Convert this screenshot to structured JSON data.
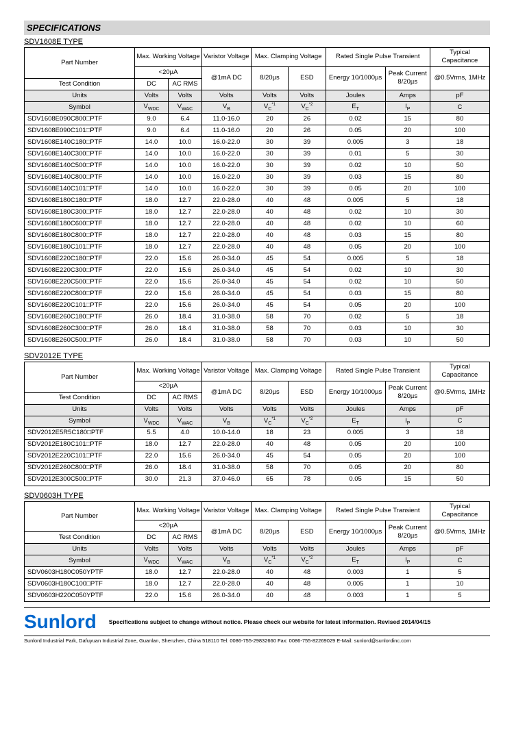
{
  "page": {
    "section_title": "SPECIFICATIONS",
    "types": [
      "SDV1608E TYPE",
      "SDV2012E TYPE",
      "SDV0603H TYPE"
    ]
  },
  "header": {
    "part_number": "Part Number",
    "max_working_voltage": "Max. Working Voltage",
    "varistor_voltage": "Varistor Voltage",
    "max_clamping_voltage": "Max. Clamping Voltage",
    "rated_single_pulse": "Rated Single Pulse Transient",
    "typical_cap": "Typical Capacitance",
    "test_condition": "Test Condition",
    "lt20ua": "<20µA",
    "dc": "DC",
    "acrms": "AC RMS",
    "at1mA": "@1mA DC",
    "t820": "8/20µs",
    "esd": "ESD",
    "energy": "Energy 10/1000µs",
    "peak_current": "Peak Current 8/20µs",
    "at05v": "@0.5Vrms, 1MHz",
    "units": "Units",
    "volts": "Volts",
    "joules": "Joules",
    "amps": "Amps",
    "pf": "pF",
    "symbol": "Symbol",
    "vwdc": "VWDC",
    "vwac": "VWAC",
    "vb": "VB",
    "vc1": "VC*1",
    "vc2": "VC*2",
    "et": "ET",
    "ip": "IP",
    "c": "C"
  },
  "t1": [
    [
      "SDV1608E090C800□PTF",
      "9.0",
      "6.4",
      "11.0-16.0",
      "20",
      "26",
      "0.02",
      "15",
      "80"
    ],
    [
      "SDV1608E090C101□PTF",
      "9.0",
      "6.4",
      "11.0-16.0",
      "20",
      "26",
      "0.05",
      "20",
      "100"
    ],
    [
      "SDV1608E140C180□PTF",
      "14.0",
      "10.0",
      "16.0-22.0",
      "30",
      "39",
      "0.005",
      "3",
      "18"
    ],
    [
      "SDV1608E140C300□PTF",
      "14.0",
      "10.0",
      "16.0-22.0",
      "30",
      "39",
      "0.01",
      "5",
      "30"
    ],
    [
      "SDV1608E140C500□PTF",
      "14.0",
      "10.0",
      "16.0-22.0",
      "30",
      "39",
      "0.02",
      "10",
      "50"
    ],
    [
      "SDV1608E140C800□PTF",
      "14.0",
      "10.0",
      "16.0-22.0",
      "30",
      "39",
      "0.03",
      "15",
      "80"
    ],
    [
      "SDV1608E140C101□PTF",
      "14.0",
      "10.0",
      "16.0-22.0",
      "30",
      "39",
      "0.05",
      "20",
      "100"
    ],
    [
      "SDV1608E180C180□PTF",
      "18.0",
      "12.7",
      "22.0-28.0",
      "40",
      "48",
      "0.005",
      "5",
      "18"
    ],
    [
      "SDV1608E180C300□PTF",
      "18.0",
      "12.7",
      "22.0-28.0",
      "40",
      "48",
      "0.02",
      "10",
      "30"
    ],
    [
      "SDV1608E180C600□PTF",
      "18.0",
      "12.7",
      "22.0-28.0",
      "40",
      "48",
      "0.02",
      "10",
      "60"
    ],
    [
      "SDV1608E180C800□PTF",
      "18.0",
      "12.7",
      "22.0-28.0",
      "40",
      "48",
      "0.03",
      "15",
      "80"
    ],
    [
      "SDV1608E180C101□PTF",
      "18.0",
      "12.7",
      "22.0-28.0",
      "40",
      "48",
      "0.05",
      "20",
      "100"
    ],
    [
      "SDV1608E220C180□PTF",
      "22.0",
      "15.6",
      "26.0-34.0",
      "45",
      "54",
      "0.005",
      "5",
      "18"
    ],
    [
      "SDV1608E220C300□PTF",
      "22.0",
      "15.6",
      "26.0-34.0",
      "45",
      "54",
      "0.02",
      "10",
      "30"
    ],
    [
      "SDV1608E220C500□PTF",
      "22.0",
      "15.6",
      "26.0-34.0",
      "45",
      "54",
      "0.02",
      "10",
      "50"
    ],
    [
      "SDV1608E220C800□PTF",
      "22.0",
      "15.6",
      "26.0-34.0",
      "45",
      "54",
      "0.03",
      "15",
      "80"
    ],
    [
      "SDV1608E220C101□PTF",
      "22.0",
      "15.6",
      "26.0-34.0",
      "45",
      "54",
      "0.05",
      "20",
      "100"
    ],
    [
      "SDV1608E260C180□PTF",
      "26.0",
      "18.4",
      "31.0-38.0",
      "58",
      "70",
      "0.02",
      "5",
      "18"
    ],
    [
      "SDV1608E260C300□PTF",
      "26.0",
      "18.4",
      "31.0-38.0",
      "58",
      "70",
      "0.03",
      "10",
      "30"
    ],
    [
      "SDV1608E260C500□PTF",
      "26.0",
      "18.4",
      "31.0-38.0",
      "58",
      "70",
      "0.03",
      "10",
      "50"
    ]
  ],
  "t2": [
    [
      "SDV2012E5R5C180□PTF",
      "5.5",
      "4.0",
      "10.0-14.0",
      "18",
      "23",
      "0.005",
      "3",
      "18"
    ],
    [
      "SDV2012E180C101□PTF",
      "18.0",
      "12.7",
      "22.0-28.0",
      "40",
      "48",
      "0.05",
      "20",
      "100"
    ],
    [
      "SDV2012E220C101□PTF",
      "22.0",
      "15.6",
      "26.0-34.0",
      "45",
      "54",
      "0.05",
      "20",
      "100"
    ],
    [
      "SDV2012E260C800□PTF",
      "26.0",
      "18.4",
      "31.0-38.0",
      "58",
      "70",
      "0.05",
      "20",
      "80"
    ],
    [
      "SDV2012E300C500□PTF",
      "30.0",
      "21.3",
      "37.0-46.0",
      "65",
      "78",
      "0.05",
      "15",
      "50"
    ]
  ],
  "t3": [
    [
      "SDV0603H180C050YPTF",
      "18.0",
      "12.7",
      "22.0-28.0",
      "40",
      "48",
      "0.003",
      "1",
      "5"
    ],
    [
      "SDV0603H180C100□PTF",
      "18.0",
      "12.7",
      "22.0-28.0",
      "40",
      "48",
      "0.005",
      "1",
      "10"
    ],
    [
      "SDV0603H220C050YPTF",
      "22.0",
      "15.6",
      "26.0-34.0",
      "40",
      "48",
      "0.003",
      "1",
      "5"
    ]
  ],
  "footer": {
    "brand": "Sunlord",
    "note": "Specifications subject to change without notice. Please check our website for latest information.     Revised 2014/04/15",
    "addr": "Sunlord Industrial Park, Dafuyuan Industrial Zone, Guanlan, Shenzhen, China 518110 Tel: 0086-755-29832660 Fax: 0086-755-82269029 E-Mail: sunlord@sunlordinc.com"
  }
}
